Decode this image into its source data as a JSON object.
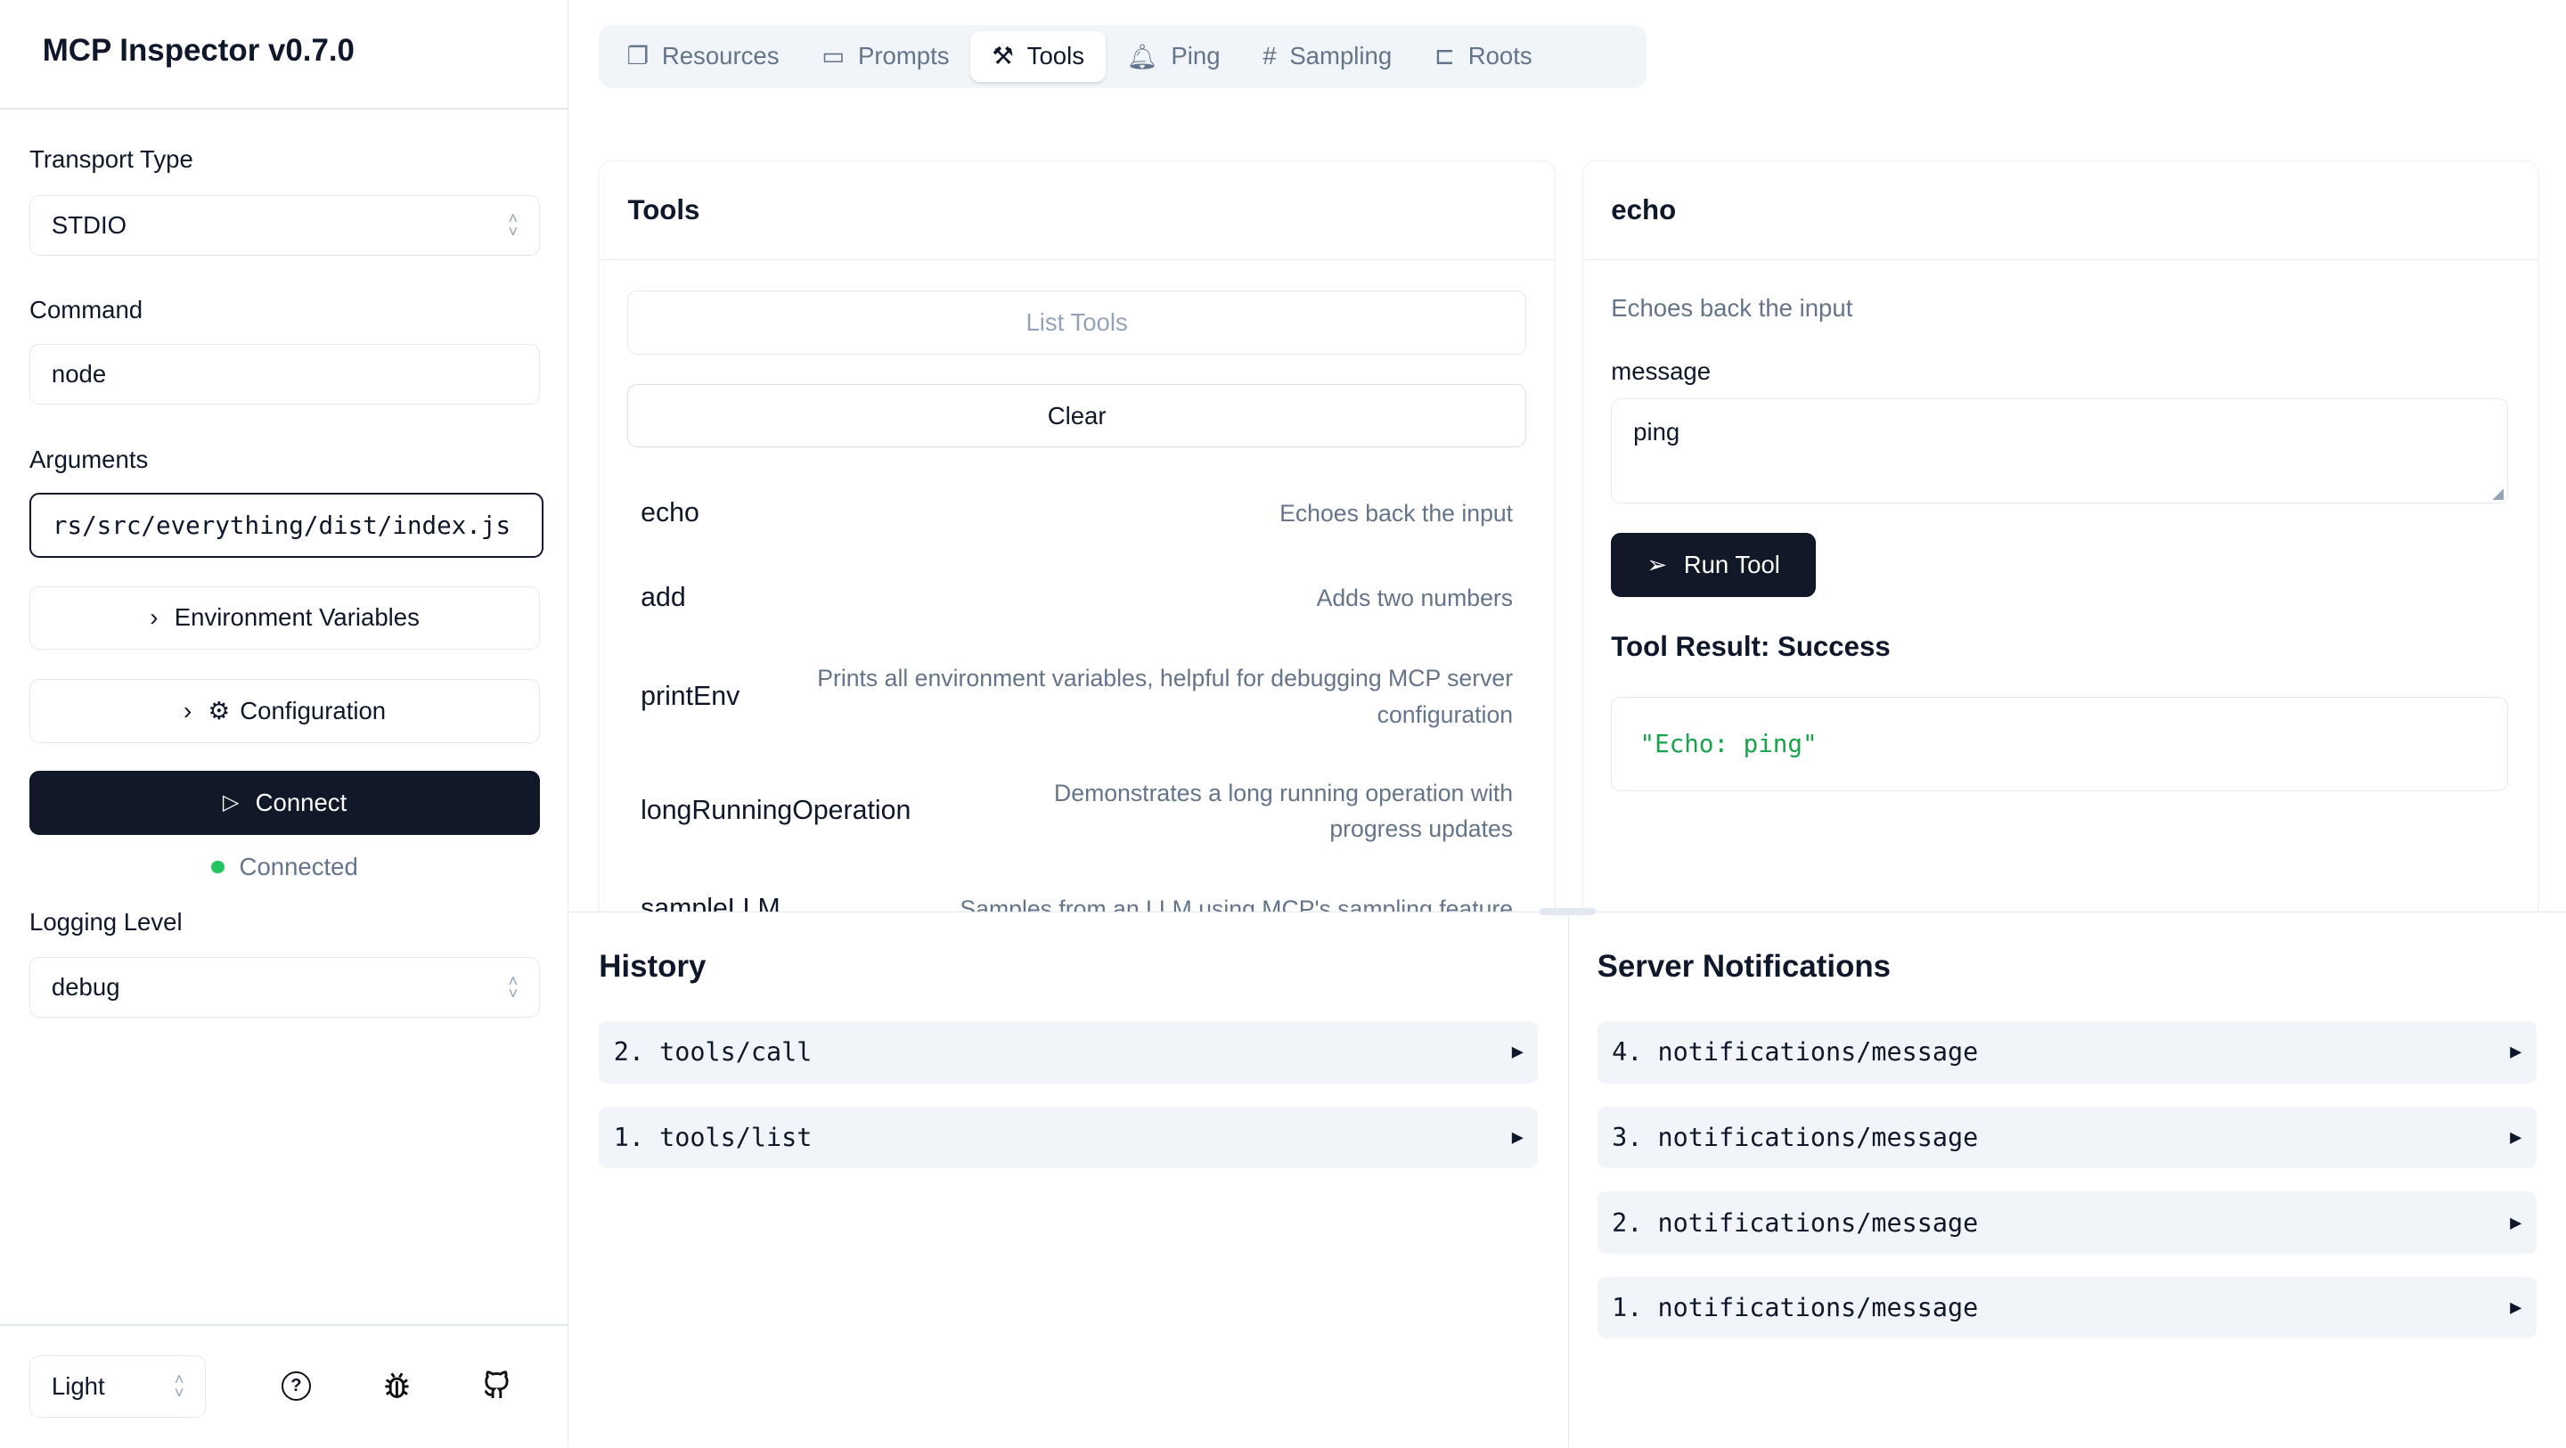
{
  "app": {
    "title": "MCP Inspector v0.7.0"
  },
  "sidebar": {
    "transport_label": "Transport Type",
    "transport_value": "STDIO",
    "command_label": "Command",
    "command_value": "node",
    "arguments_label": "Arguments",
    "arguments_value": "rs/src/everything/dist/index.js",
    "env_button": "Environment Variables",
    "config_button": "Configuration",
    "connect_button": "Connect",
    "status": "Connected",
    "status_color": "#22c55e",
    "logging_label": "Logging Level",
    "logging_value": "debug",
    "theme_value": "Light"
  },
  "tabs": [
    {
      "label": "Resources",
      "icon": "files-icon"
    },
    {
      "label": "Prompts",
      "icon": "message-square-icon"
    },
    {
      "label": "Tools",
      "icon": "hammer-icon",
      "active": true
    },
    {
      "label": "Ping",
      "icon": "bell-icon"
    },
    {
      "label": "Sampling",
      "icon": "hash-icon"
    },
    {
      "label": "Roots",
      "icon": "folder-tree-icon"
    }
  ],
  "tools_panel": {
    "title": "Tools",
    "list_button": "List Tools",
    "clear_button": "Clear",
    "items": [
      {
        "name": "echo",
        "description": "Echoes back the input"
      },
      {
        "name": "add",
        "description": "Adds two numbers"
      },
      {
        "name": "printEnv",
        "description": "Prints all environment variables, helpful for debugging MCP server configuration"
      },
      {
        "name": "longRunningOperation",
        "description": "Demonstrates a long running operation with progress updates"
      },
      {
        "name": "sampleLLM",
        "description": "Samples from an LLM using MCP's sampling feature"
      }
    ]
  },
  "tool_detail": {
    "title": "echo",
    "description": "Echoes back the input",
    "param_label": "message",
    "param_value": "ping",
    "run_button": "Run Tool",
    "result_title": "Tool Result: Success",
    "result_value": "\"Echo: ping\"",
    "result_color": "#16a34a"
  },
  "history": {
    "title": "History",
    "items": [
      "2. tools/call",
      "1. tools/list"
    ]
  },
  "notifications": {
    "title": "Server Notifications",
    "items": [
      "4. notifications/message",
      "3. notifications/message",
      "2. notifications/message",
      "1. notifications/message"
    ]
  }
}
